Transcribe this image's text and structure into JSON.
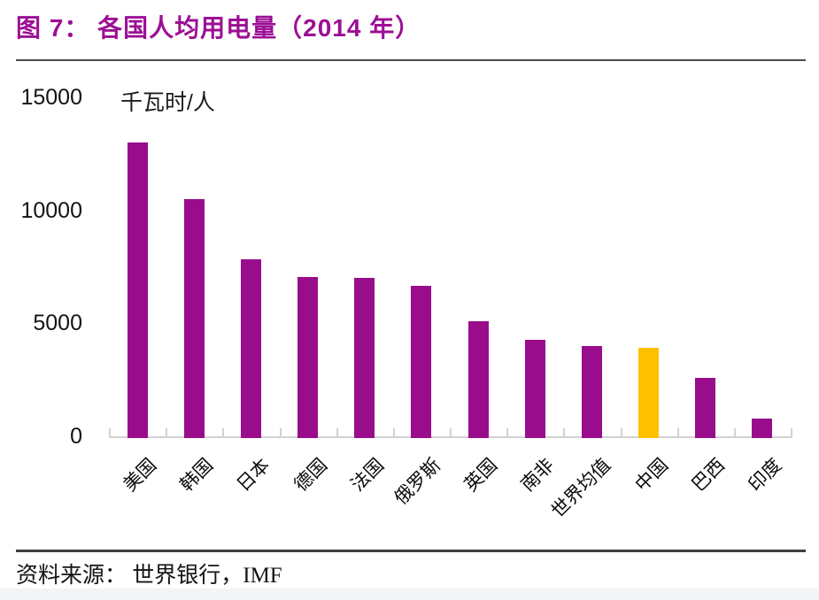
{
  "page": {
    "title": "图 7：  各国人均用电量（2014 年）",
    "source": "资料来源： 世界银行，IMF"
  },
  "chart_data": {
    "type": "bar",
    "title": "各国人均用电量（2014 年）",
    "unit_label": "千瓦时/人",
    "categories": [
      "美国",
      "韩国",
      "日本",
      "德国",
      "法国",
      "俄罗斯",
      "英国",
      "南非",
      "世界均值",
      "中国",
      "巴西",
      "印度"
    ],
    "values": [
      13000,
      10500,
      7850,
      7050,
      7000,
      6650,
      5100,
      4250,
      4000,
      3900,
      2600,
      800
    ],
    "ylim": [
      0,
      15000
    ],
    "yticks": [
      15000,
      10000,
      5000,
      0
    ],
    "xlabel": "",
    "ylabel": "千瓦时/人",
    "grid": false,
    "legend_position": "none",
    "bar_color": "#990d8c",
    "highlight_color": "#ffc000",
    "highlight_category": "中国",
    "axis_color": "#d2d2d2"
  },
  "colors": {
    "title": "#9c0f94",
    "rule_top": "#4a4a4a",
    "rule_bottom": "#3f3f3f"
  }
}
